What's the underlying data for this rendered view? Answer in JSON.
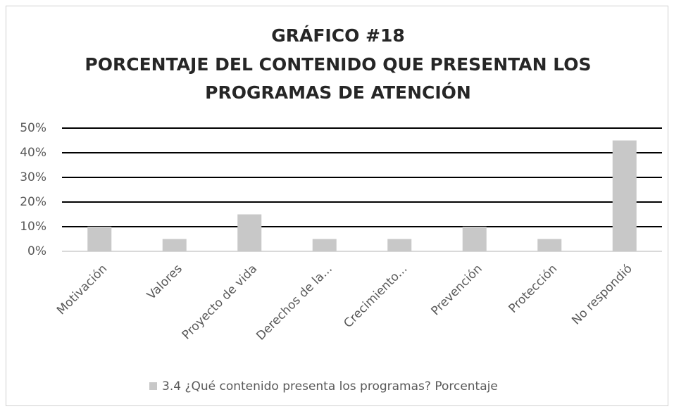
{
  "chart_data": {
    "type": "bar",
    "title": [
      "GRÁFICO #18",
      "PORCENTAJE DEL CONTENIDO QUE PRESENTAN LOS",
      "PROGRAMAS DE ATENCIÓN"
    ],
    "categories": [
      "Motivación",
      "Valores",
      "Proyecto de vida",
      "Derechos de la...",
      "Crecimiento...",
      "Prevención",
      "Protección",
      "No respondió"
    ],
    "series": [
      {
        "name": "3.4 ¿Qué contenido presenta los programas? Porcentaje",
        "color": "#c8c8c8",
        "values": [
          10,
          5,
          15,
          5,
          5,
          10,
          5,
          45
        ]
      }
    ],
    "ylim": [
      0,
      50
    ],
    "yticks": [
      {
        "value": 0,
        "label": "0%"
      },
      {
        "value": 10,
        "label": "10%"
      },
      {
        "value": 20,
        "label": "20%"
      },
      {
        "value": 30,
        "label": "30%"
      },
      {
        "value": 40,
        "label": "40%"
      },
      {
        "value": 50,
        "label": "50%"
      }
    ],
    "grid": true,
    "legend": "bottom"
  }
}
